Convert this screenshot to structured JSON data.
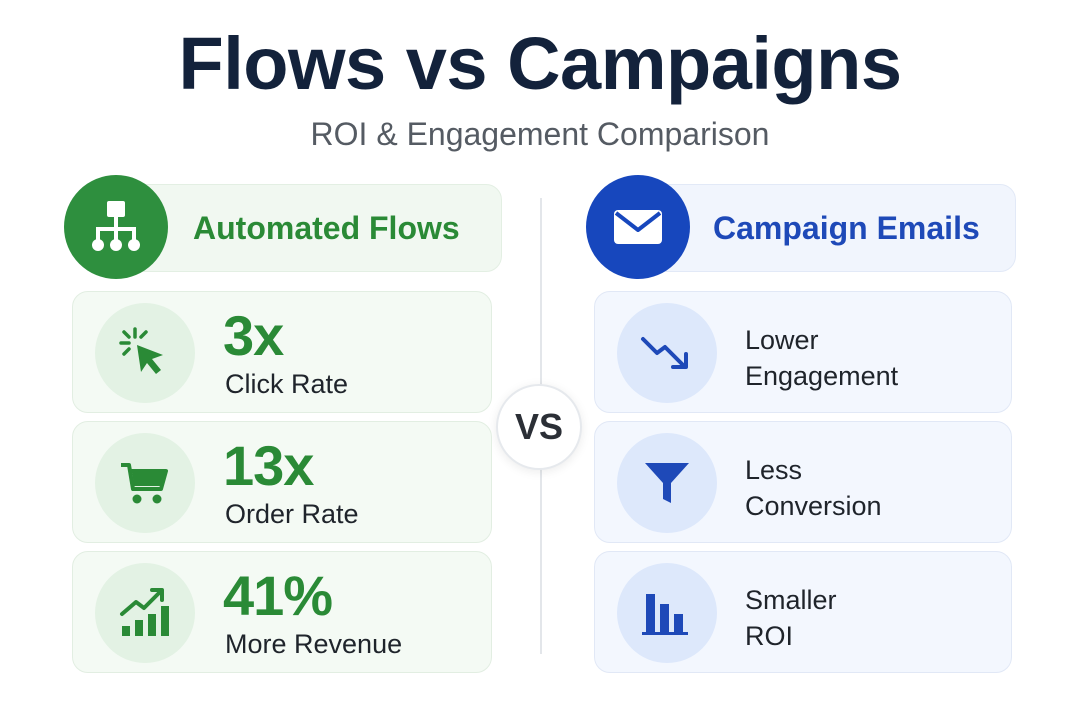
{
  "title": "Flows vs Campaigns",
  "subtitle": "ROI & Engagement Comparison",
  "vs_label": "VS",
  "left": {
    "heading": "Automated Flows",
    "heading_icon": "flowchart-icon",
    "accent_color": "#2e8f3e",
    "cards": [
      {
        "icon": "cursor-click-icon",
        "value": "3x",
        "label": "Click Rate"
      },
      {
        "icon": "shopping-cart-icon",
        "value": "13x",
        "label": "Order Rate"
      },
      {
        "icon": "growth-chart-icon",
        "value": "41%",
        "label": "More Revenue"
      }
    ]
  },
  "right": {
    "heading": "Campaign Emails",
    "heading_icon": "envelope-icon",
    "accent_color": "#1747bd",
    "cards": [
      {
        "icon": "trend-down-icon",
        "line1": "Lower",
        "line2": "Engagement"
      },
      {
        "icon": "funnel-icon",
        "line1": "Less",
        "line2": "Conversion"
      },
      {
        "icon": "bar-chart-icon",
        "line1": "Smaller",
        "line2": "ROI"
      }
    ]
  }
}
